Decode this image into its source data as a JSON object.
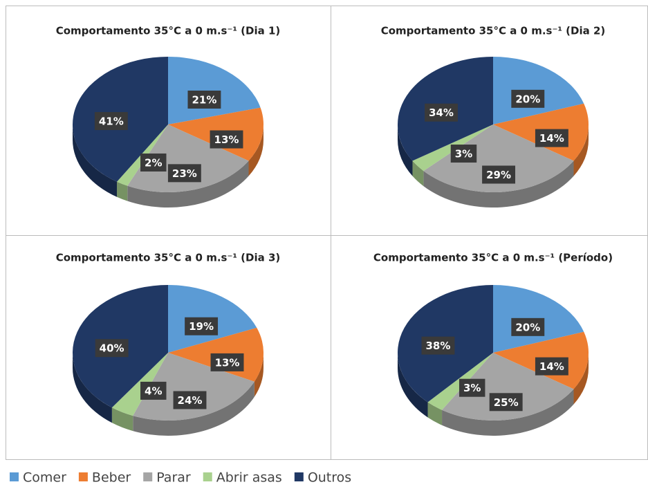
{
  "chart_data": [
    {
      "type": "pie",
      "title": "Comportamento 35°C a 0 m.s⁻¹ (Dia 1)",
      "values": [
        21,
        13,
        23,
        2,
        41
      ],
      "value_labels": [
        "21%",
        "13%",
        "23%",
        "2%",
        "41%"
      ]
    },
    {
      "type": "pie",
      "title": "Comportamento 35°C a 0 m.s⁻¹ (Dia 2)",
      "values": [
        20,
        14,
        29,
        3,
        34
      ],
      "value_labels": [
        "20%",
        "14%",
        "29%",
        "3%",
        "34%"
      ]
    },
    {
      "type": "pie",
      "title": "Comportamento 35°C a 0 m.s⁻¹ (Dia 3)",
      "values": [
        19,
        13,
        24,
        4,
        40
      ],
      "value_labels": [
        "19%",
        "13%",
        "24%",
        "4%",
        "40%"
      ]
    },
    {
      "type": "pie",
      "title": "Comportamento 35°C a 0 m.s⁻¹  (Período)",
      "values": [
        20,
        14,
        25,
        3,
        38
      ],
      "value_labels": [
        "20%",
        "14%",
        "25%",
        "3%",
        "38%"
      ]
    }
  ],
  "legend": {
    "labels": [
      "Comer",
      "Beber",
      "Parar",
      "Abrir asas",
      "Outros"
    ],
    "colors": [
      "#5b9bd5",
      "#ed7d31",
      "#a5a5a5",
      "#a9d18e",
      "#203864"
    ]
  }
}
